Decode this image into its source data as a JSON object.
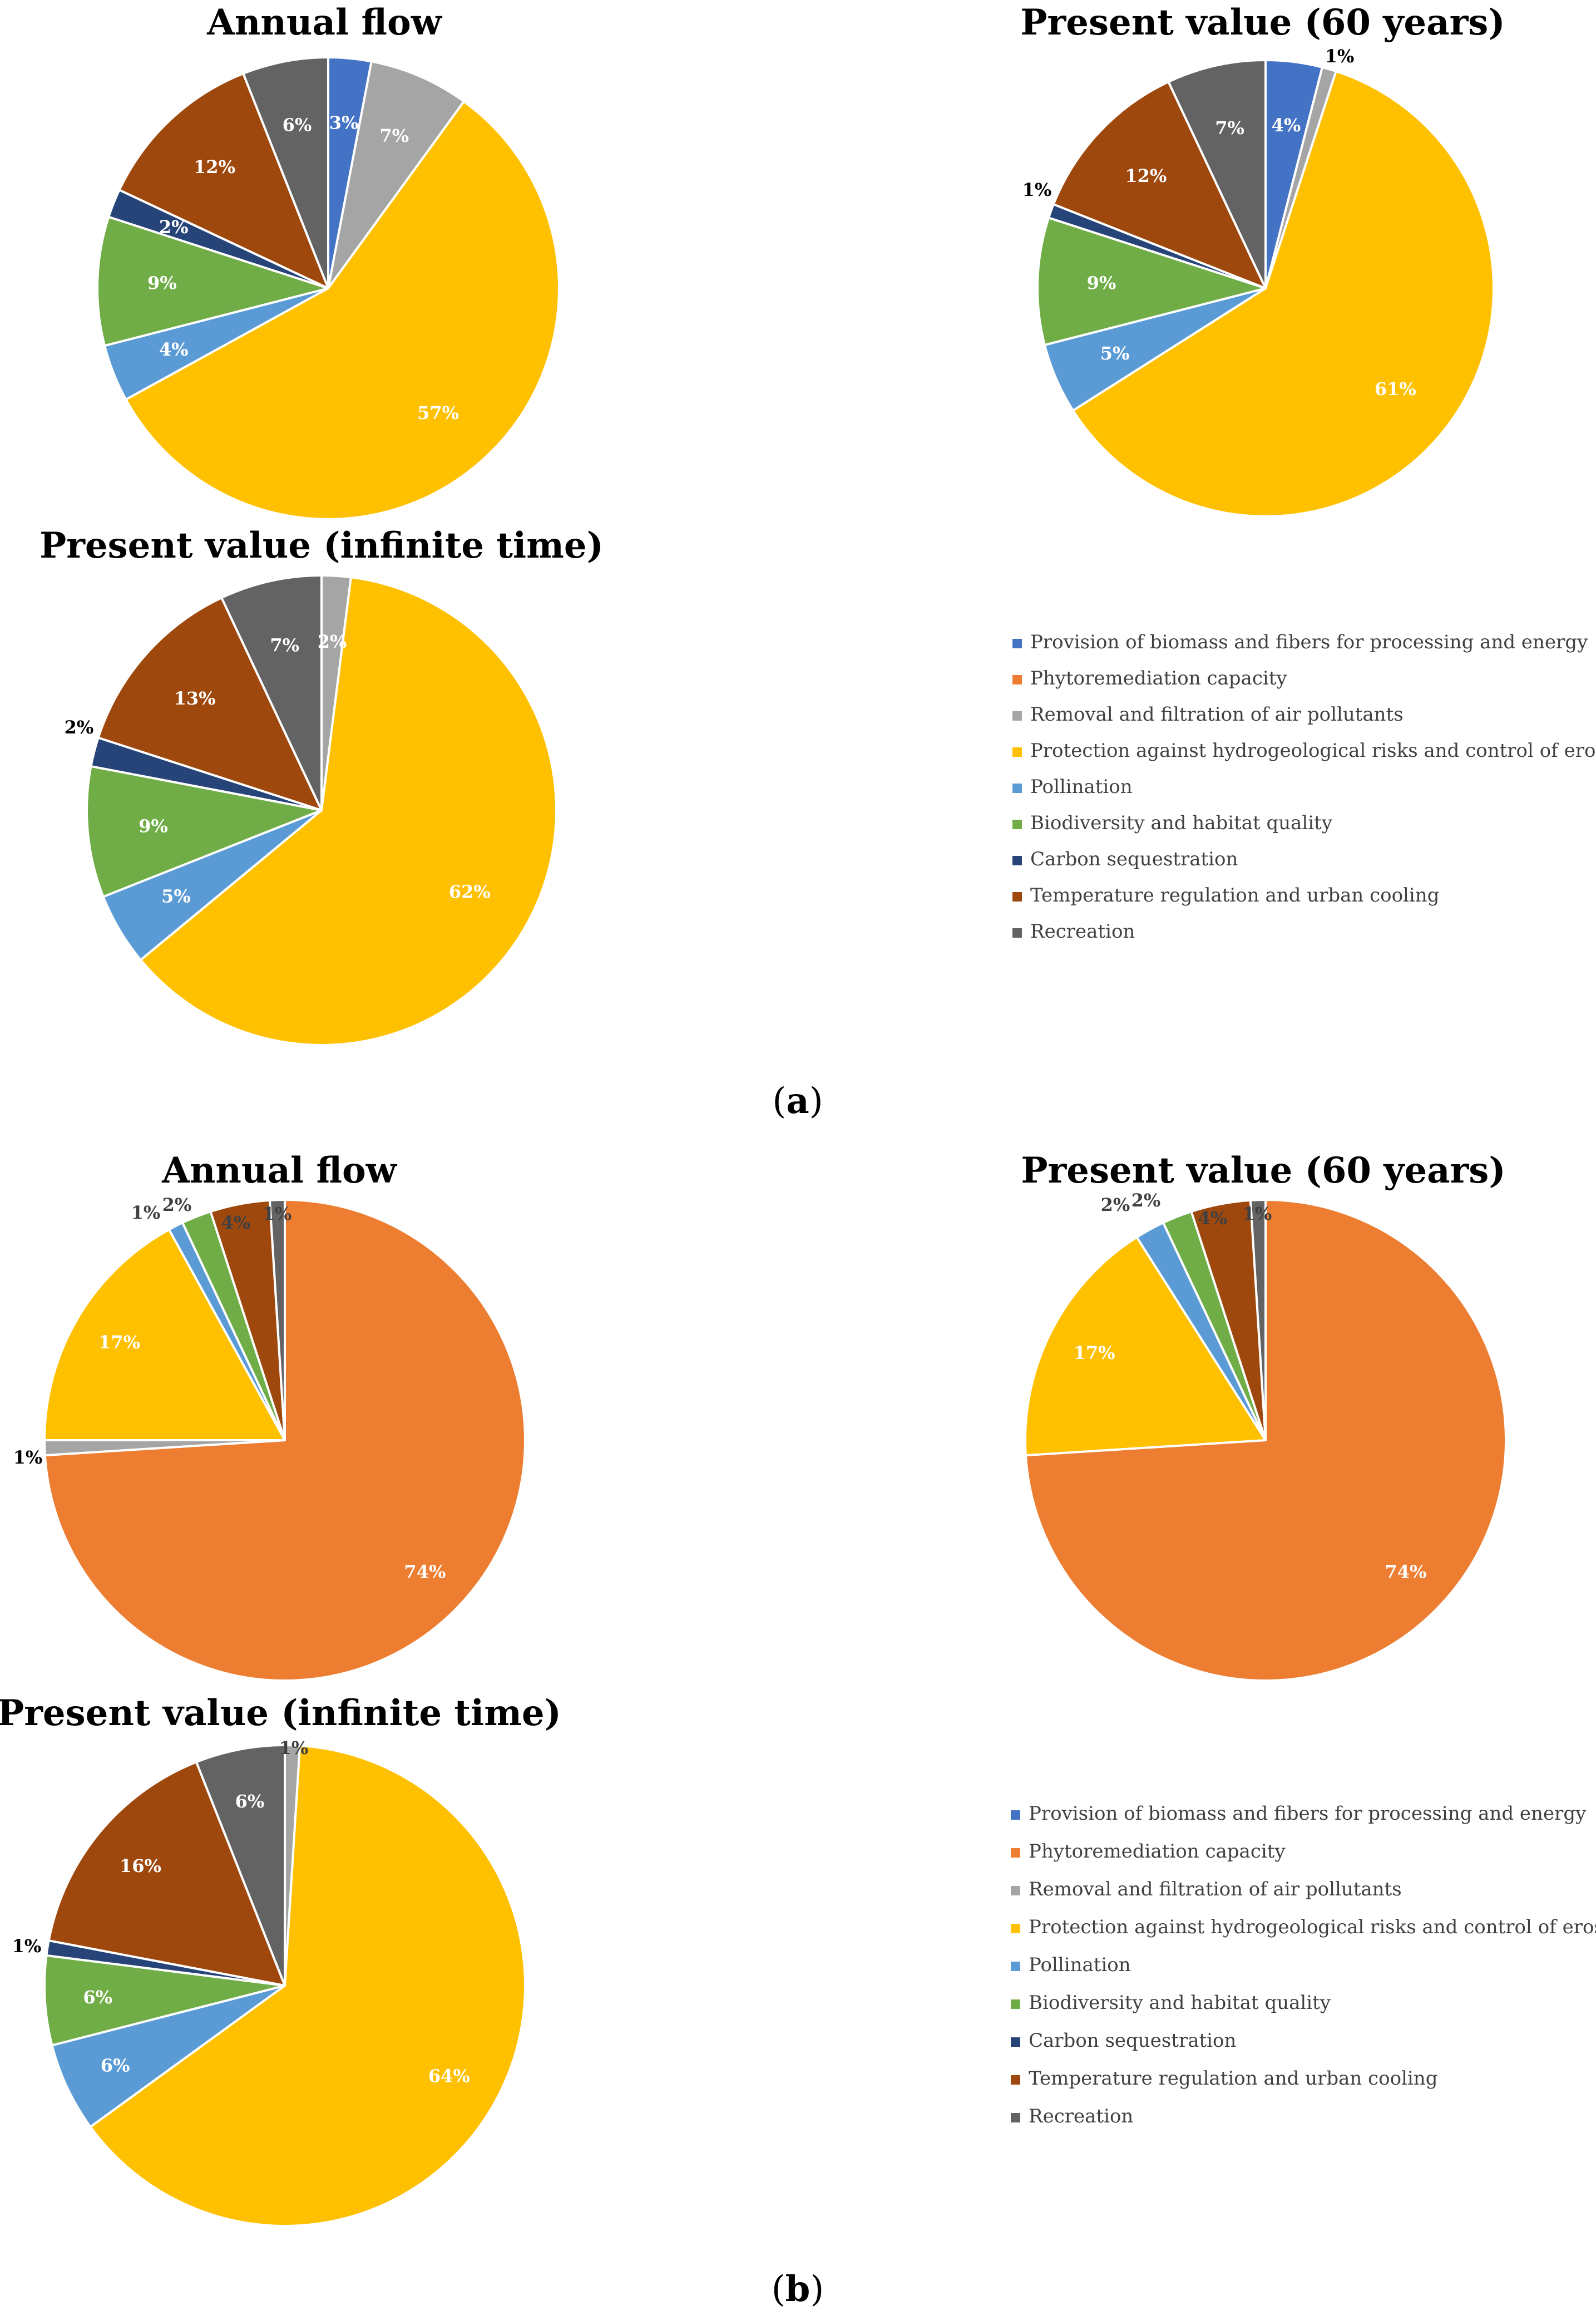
{
  "series_names": [
    "Provision of biomass and fibers for processing and energy",
    "Phytoremediation capacity",
    "Removal and filtration of air pollutants",
    "Protection against hydrogeological risks and control of erosion",
    "Pollination",
    "Biodiversity and habitat quality",
    "Carbon sequestration",
    "Temperature regulation and urban cooling",
    "Recreation"
  ],
  "colors": [
    "#4472C4",
    "#ED7D31",
    "#A5A5A5",
    "#FFC000",
    "#5B9BD5",
    "#70AD47",
    "#264478",
    "#9E480E",
    "#636363"
  ],
  "panels": [
    {
      "label_prefix": "(",
      "label_letter": "a",
      "label_suffix": ")"
    },
    {
      "label_prefix": "(",
      "label_letter": "b",
      "label_suffix": ")"
    }
  ],
  "chart_data": [
    {
      "type": "pie",
      "panel": "a",
      "title": "Annual flow",
      "values": [
        3,
        0,
        7,
        57,
        4,
        9,
        2,
        12,
        6
      ],
      "labels": [
        "3%",
        "",
        "7%",
        "57%",
        "4%",
        "9%",
        "2%",
        "12%",
        "6%"
      ]
    },
    {
      "type": "pie",
      "panel": "a",
      "title": "Present value (60 years)",
      "values": [
        4,
        0,
        1,
        61,
        5,
        9,
        1,
        12,
        7
      ],
      "labels": [
        "4%",
        "",
        "1%",
        "61%",
        "5%",
        "9%",
        "1%",
        "12%",
        "7%"
      ]
    },
    {
      "type": "pie",
      "panel": "a",
      "title": "Present value (infinite time)",
      "values": [
        0,
        0,
        2,
        62,
        5,
        9,
        2,
        13,
        7
      ],
      "labels": [
        "",
        "",
        "2%",
        "62%",
        "5%",
        "9%",
        "2%",
        "13%",
        "7%"
      ]
    },
    {
      "type": "pie",
      "panel": "b",
      "title": "Annual flow",
      "values": [
        0,
        74,
        1,
        17,
        1,
        2,
        0,
        4,
        1
      ],
      "labels": [
        "",
        "74%",
        "1%",
        "17%",
        "1%",
        "2%",
        "",
        "4%",
        "1%"
      ]
    },
    {
      "type": "pie",
      "panel": "b",
      "title": "Present value (60 years)",
      "values": [
        0,
        74,
        0,
        17,
        2,
        2,
        0,
        4,
        1
      ],
      "labels": [
        "",
        "74%",
        "",
        "17%",
        "2%",
        "2%",
        "",
        "4%",
        "1%"
      ]
    },
    {
      "type": "pie",
      "panel": "b",
      "title": "Present value (infinite time)",
      "values": [
        0,
        0,
        1,
        64,
        6,
        6,
        1,
        16,
        6
      ],
      "labels": [
        "",
        "",
        "1%",
        "64%",
        "6%",
        "6%",
        "1%",
        "16%",
        "6%"
      ]
    }
  ]
}
